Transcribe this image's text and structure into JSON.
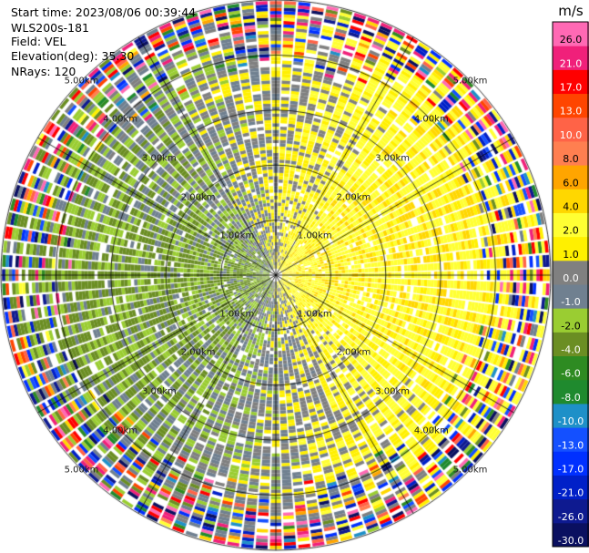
{
  "header": {
    "start_time_line": "Start time: 2023/08/06 00:39:44",
    "site_line": "WLS200s-181",
    "field_line": "Field: VEL",
    "elevation_line": "Elevation(deg): 35.30",
    "nrays_line": "NRays: 120"
  },
  "chart_data": {
    "type": "heatmap",
    "projection": "polar-ppi",
    "field": "VEL",
    "nrays": 120,
    "elevation_deg": 35.3,
    "max_range_km": 5.0,
    "range_rings_km": [
      1.0,
      2.0,
      3.0,
      4.0,
      5.0
    ],
    "range_ring_labels": [
      "1.00km",
      "2.00km",
      "3.00km",
      "4.00km",
      "5.00km"
    ],
    "spoke_azimuths_deg": [
      0,
      30,
      60,
      90,
      120,
      150,
      180,
      210,
      240,
      270,
      300,
      330
    ],
    "colorbar": {
      "unit": "m/s",
      "bounds": [
        -30,
        -26,
        -21,
        -17,
        -13,
        -10,
        -8,
        -6,
        -4,
        -2,
        -1,
        0,
        1,
        2,
        4,
        6,
        8,
        10,
        13,
        17,
        21,
        26,
        30
      ],
      "tick_labels": [
        "-30.0",
        "-26.0",
        "-21.0",
        "-17.0",
        "-13.0",
        "-10.0",
        "-8.0",
        "-6.0",
        "-4.0",
        "-2.0",
        "-1.0",
        "0.0",
        "1.0",
        "2.0",
        "4.0",
        "6.0",
        "8.0",
        "10.0",
        "13.0",
        "17.0",
        "21.0",
        "26.0"
      ],
      "colors": [
        "#0a1060",
        "#0e1a90",
        "#0020c8",
        "#0030ff",
        "#1450ff",
        "#1e90c8",
        "#1f8a2e",
        "#2e8b22",
        "#6b8e23",
        "#9acd32",
        "#708090",
        "#808080",
        "#fff000",
        "#ffff33",
        "#ffd700",
        "#ffa500",
        "#ff7f50",
        "#ff6347",
        "#ff4500",
        "#ff0000",
        "#f0207a",
        "#ff69b4"
      ]
    }
  }
}
